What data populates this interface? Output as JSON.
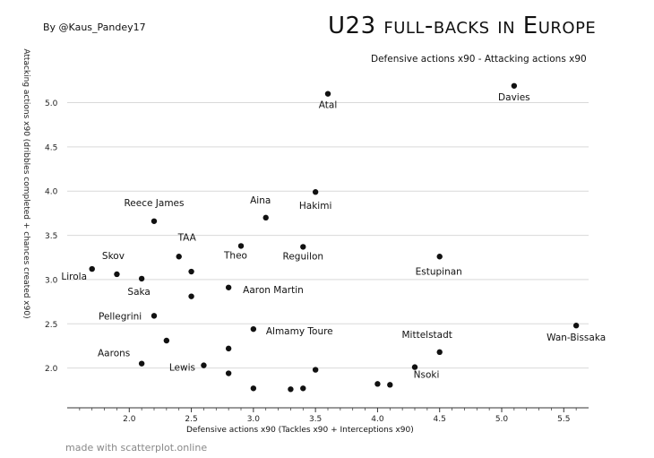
{
  "header": {
    "author": "By @Kaus_Pandey17",
    "title": "U23 full-backs in Europe",
    "subtitle": "Defensive actions x90 - Attacking actions x90"
  },
  "footer": {
    "credit": "made with scatterplot.online"
  },
  "chart_data": {
    "type": "scatter",
    "title": "U23 full-backs in Europe",
    "subtitle": "Defensive actions x90 - Attacking actions x90",
    "xlabel": "Defensive actions x90 (Tackles x90 + Interceptions x90)",
    "ylabel": "Attacking actions x90 (dribbles completed + chances created x90)",
    "xlim": [
      1.5,
      5.7
    ],
    "ylim": [
      1.55,
      5.35
    ],
    "x_ticks": [
      2.0,
      2.5,
      3.0,
      3.5,
      4.0,
      4.5,
      5.0,
      5.5
    ],
    "y_ticks": [
      2.0,
      2.5,
      3.0,
      3.5,
      4.0,
      4.5,
      5.0
    ],
    "tick_format": "0.0",
    "grid": "horizontal",
    "colors": {
      "point": "#111111",
      "grid": "#d9d9d9",
      "axis": "#333333"
    },
    "points": [
      {
        "label": "Atal",
        "x": 3.6,
        "y": 5.1
      },
      {
        "label": "Davies",
        "x": 5.1,
        "y": 5.19
      },
      {
        "label": "Hakimi",
        "x": 3.5,
        "y": 3.99
      },
      {
        "label": "Aina",
        "x": 3.1,
        "y": 3.7
      },
      {
        "label": "Reece James",
        "x": 2.2,
        "y": 3.66
      },
      {
        "label": "TAA",
        "x": 2.4,
        "y": 3.26
      },
      {
        "label": "Theo",
        "x": 2.9,
        "y": 3.38
      },
      {
        "label": "Reguilon",
        "x": 3.4,
        "y": 3.37
      },
      {
        "label": "Estupinan",
        "x": 4.5,
        "y": 3.26
      },
      {
        "label": "Skov",
        "x": 1.9,
        "y": 3.06
      },
      {
        "label": "Lirola",
        "x": 1.7,
        "y": 3.12
      },
      {
        "label": "Saka",
        "x": 2.1,
        "y": 3.01
      },
      {
        "label": "",
        "x": 2.5,
        "y": 3.09
      },
      {
        "label": "Aaron Martin",
        "x": 2.8,
        "y": 2.91
      },
      {
        "label": "",
        "x": 2.5,
        "y": 2.81
      },
      {
        "label": "Pellegrini",
        "x": 2.2,
        "y": 2.59
      },
      {
        "label": "Almamy Toure",
        "x": 3.0,
        "y": 2.44
      },
      {
        "label": "Wan-Bissaka",
        "x": 5.6,
        "y": 2.48
      },
      {
        "label": "Mittelstadt",
        "x": 4.5,
        "y": 2.18
      },
      {
        "label": "",
        "x": 2.3,
        "y": 2.31
      },
      {
        "label": "",
        "x": 2.8,
        "y": 2.22
      },
      {
        "label": "Aarons",
        "x": 2.1,
        "y": 2.05
      },
      {
        "label": "Lewis",
        "x": 2.6,
        "y": 2.03
      },
      {
        "label": "",
        "x": 2.8,
        "y": 1.94
      },
      {
        "label": "",
        "x": 3.5,
        "y": 1.98
      },
      {
        "label": "Nsoki",
        "x": 4.3,
        "y": 2.01
      },
      {
        "label": "",
        "x": 4.0,
        "y": 1.82
      },
      {
        "label": "",
        "x": 4.1,
        "y": 1.81
      },
      {
        "label": "",
        "x": 3.0,
        "y": 1.77
      },
      {
        "label": "",
        "x": 3.3,
        "y": 1.76
      },
      {
        "label": "",
        "x": 3.4,
        "y": 1.77
      }
    ]
  }
}
